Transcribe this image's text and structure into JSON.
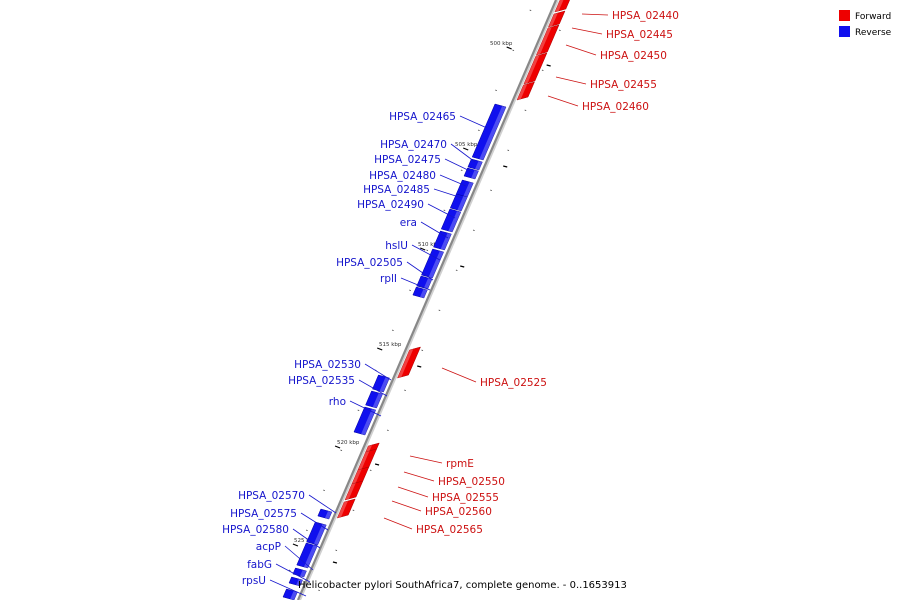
{
  "caption": "Helicobacter pylori SouthAfrica7, complete genome. - 0..1653913",
  "legend": [
    {
      "label": "Forward",
      "color": "#ee0000"
    },
    {
      "label": "Reverse",
      "color": "#1010ee"
    }
  ],
  "colors": {
    "forward": "#ee0000",
    "reverse": "#1010ee",
    "forward_label": "#cc1111",
    "reverse_label": "#1515cc",
    "backbone": "#888888"
  },
  "ticks": [
    "500 kbp",
    "505 kbp",
    "510 kbp",
    "515 kbp",
    "520 kbp",
    "525 kbp"
  ],
  "forward_genes": [
    "HPSA_02440",
    "HPSA_02445",
    "HPSA_02450",
    "HPSA_02455",
    "HPSA_02460",
    "HPSA_02525",
    "rpmE",
    "HPSA_02550",
    "HPSA_02555",
    "HPSA_02560",
    "HPSA_02565"
  ],
  "reverse_genes": [
    "HPSA_02465",
    "HPSA_02470",
    "HPSA_02475",
    "HPSA_02480",
    "HPSA_02485",
    "HPSA_02490",
    "era",
    "hslU",
    "HPSA_02505",
    "rplI",
    "HPSA_02530",
    "HPSA_02535",
    "rho",
    "HPSA_02570",
    "HPSA_02575",
    "HPSA_02580",
    "acpP",
    "fabG",
    "rpsU"
  ]
}
